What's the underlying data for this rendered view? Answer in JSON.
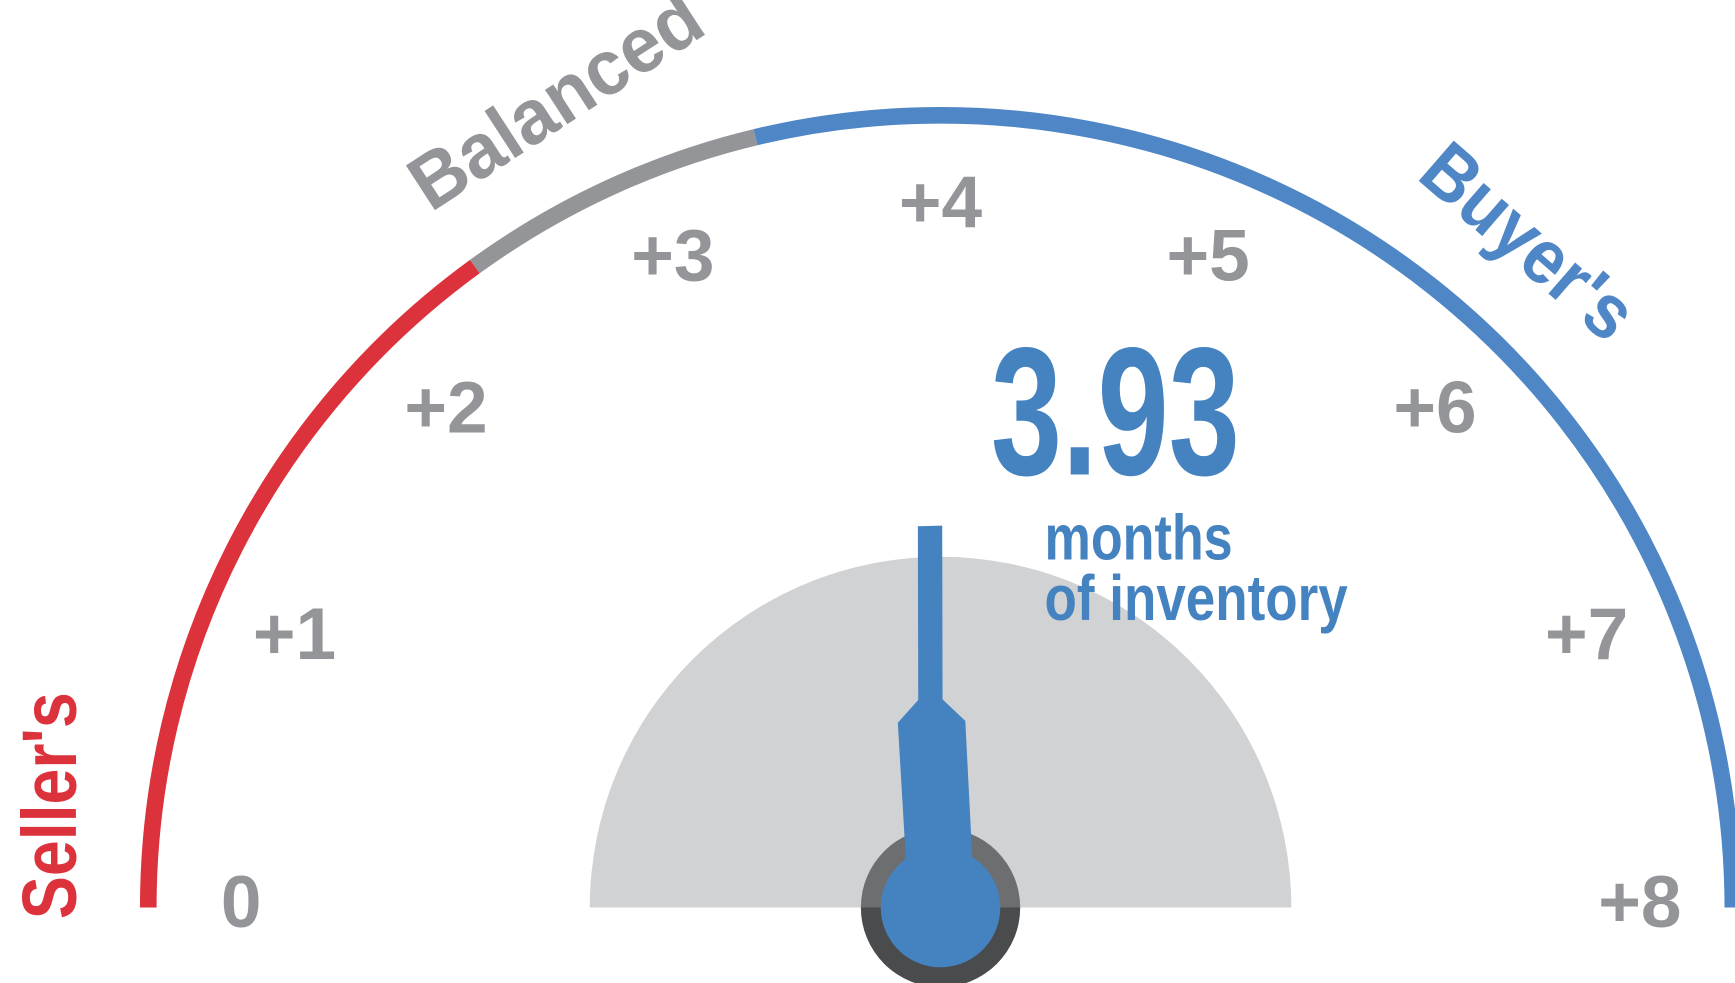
{
  "chart_data": {
    "type": "gauge",
    "value": 3.93,
    "value_label": "3.93",
    "unit_lines": [
      "months",
      "of inventory"
    ],
    "xlim": [
      0,
      8
    ],
    "xticks": [
      0,
      {
        "value": 1,
        "label": "+1"
      },
      {
        "value": 2,
        "label": "+2"
      },
      {
        "value": 3,
        "label": "+3"
      },
      {
        "value": 4,
        "label": "+4"
      },
      {
        "value": 5,
        "label": "+5"
      },
      {
        "value": 6,
        "label": "+6"
      },
      {
        "value": 7,
        "label": "+7"
      },
      {
        "value": 8,
        "label": "+8"
      }
    ],
    "zones": [
      {
        "name": "Seller's",
        "color": "#dc323c",
        "from": 0,
        "to": 2.4
      },
      {
        "name": "Balanced",
        "color": "#939598",
        "from": 2.4,
        "to": 3.4
      },
      {
        "name": "Buyer's",
        "color": "#4f86c6",
        "from": 3.4,
        "to": 8
      }
    ],
    "needle_color": "#4582c0"
  }
}
